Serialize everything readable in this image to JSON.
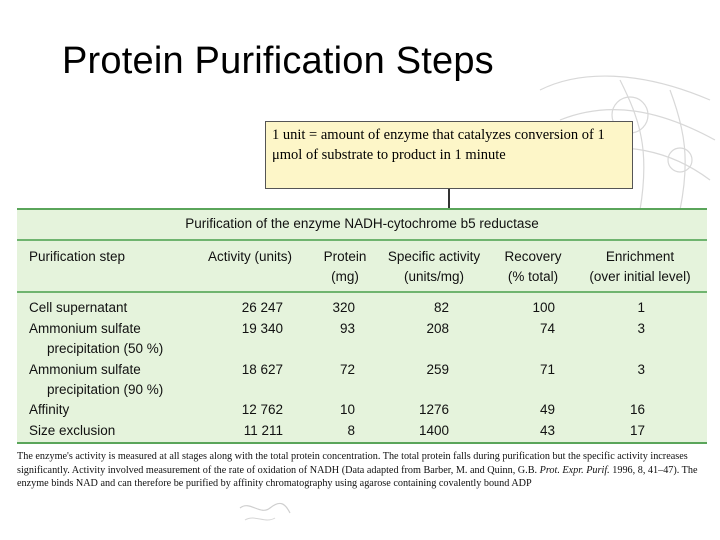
{
  "slide": {
    "title": "Protein Purification Steps"
  },
  "callout": {
    "text": "1 unit = amount of enzyme that catalyzes conversion of 1 μmol of substrate to product in 1 minute"
  },
  "table": {
    "caption": "Purification of the enzyme NADH-cytochrome b5 reductase",
    "headers": {
      "step": "Purification step",
      "activity": "Activity (units)",
      "protein_line1": "Protein",
      "protein_line2": "(mg)",
      "specific_line1": "Specific activity",
      "specific_line2": "(units/mg)",
      "recovery_line1": "Recovery",
      "recovery_line2": "(% total)",
      "enrichment_line1": "Enrichment",
      "enrichment_line2": "(over initial level)"
    },
    "rows": [
      {
        "step": "Cell supernatant",
        "step2": "",
        "activity": "26 247",
        "protein": "320",
        "specific": "82",
        "recovery": "100",
        "enrichment": "1"
      },
      {
        "step": "Ammonium sulfate",
        "step2": "precipitation (50 %)",
        "activity": "19 340",
        "protein": "93",
        "specific": "208",
        "recovery": "74",
        "enrichment": "3"
      },
      {
        "step": "Ammonium sulfate",
        "step2": "precipitation (90 %)",
        "activity": "18 627",
        "protein": "72",
        "specific": "259",
        "recovery": "71",
        "enrichment": "3"
      },
      {
        "step": "Affinity",
        "step2": "",
        "activity": "12 762",
        "protein": "10",
        "specific": "1276",
        "recovery": "49",
        "enrichment": "16"
      },
      {
        "step": "Size exclusion",
        "step2": "",
        "activity": "11 211",
        "protein": "8",
        "specific": "1400",
        "recovery": "43",
        "enrichment": "17"
      }
    ]
  },
  "footnote": {
    "part1": "The enzyme's activity is measured at all stages along with the total protein concentration. The total protein falls during purification but the specific activity increases significantly. Activity involved measurement of the rate of oxidation of NADH (Data adapted from Barber, M. and Quinn, G.B. ",
    "journal": "Prot. Expr. Purif.",
    "part2": " 1996, 8, 41–47). The enzyme binds NAD and can therefore be purified by affinity chromatography using agarose containing covalently bound ADP"
  },
  "colors": {
    "panel_bg": "#e5f3dc",
    "panel_rule": "#5aa55a",
    "callout_bg": "#fdf6c8"
  }
}
